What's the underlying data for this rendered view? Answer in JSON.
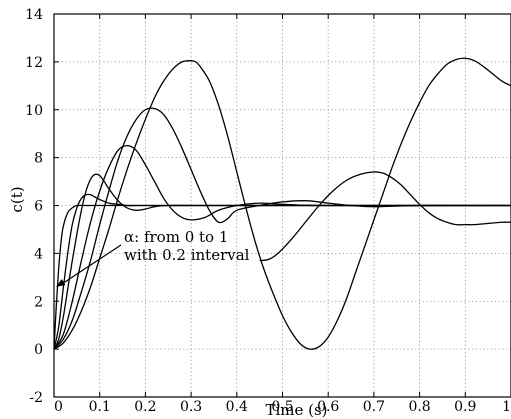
{
  "chart_data": {
    "type": "line",
    "xlabel": "Time (s)",
    "ylabel": "c(t)",
    "xlim": [
      0,
      1
    ],
    "ylim": [
      -2,
      14
    ],
    "x_ticks": [
      0,
      0.1,
      0.2,
      0.3,
      0.4,
      0.5,
      0.6,
      0.7,
      0.8,
      0.9,
      1
    ],
    "x_tick_labels": [
      "0",
      "0.1",
      "0.2",
      "0.3",
      "0.4",
      "0.5",
      "0.6",
      "0.7",
      "0.8",
      "0.9",
      "1"
    ],
    "y_ticks": [
      -2,
      0,
      2,
      4,
      6,
      8,
      10,
      12,
      14
    ],
    "y_tick_labels": [
      "-2",
      "0",
      "2",
      "4",
      "6",
      "8",
      "10",
      "12",
      "14"
    ],
    "grid": true,
    "annotation": {
      "line1": "α: from 0 to 1",
      "line2": "with 0.2 interval",
      "arrow_target": [
        0.0,
        2.6
      ]
    },
    "series": [
      {
        "x": [
          0,
          0.005,
          0.01,
          0.015,
          0.02,
          0.03,
          0.04,
          0.05,
          0.07,
          0.1,
          0.2,
          0.4,
          0.6,
          0.8,
          1.0
        ],
        "values": [
          0,
          1.8,
          3.3,
          4.4,
          5.1,
          5.7,
          5.9,
          6.0,
          6.0,
          6.0,
          6.0,
          6.0,
          6.0,
          6.0,
          6.0
        ]
      },
      {
        "x": [
          0,
          0.01,
          0.02,
          0.03,
          0.04,
          0.05,
          0.06,
          0.07,
          0.08,
          0.09,
          0.1,
          0.12,
          0.14,
          0.16,
          0.18,
          0.2,
          0.25,
          0.3,
          0.4,
          0.5,
          1.0
        ],
        "values": [
          0,
          0.9,
          2.5,
          4.0,
          5.2,
          5.9,
          6.3,
          6.45,
          6.45,
          6.35,
          6.25,
          6.1,
          6.05,
          6.0,
          6.0,
          6.0,
          6.0,
          6.0,
          6.0,
          6.0,
          6.0
        ]
      },
      {
        "x": [
          0,
          0.01,
          0.02,
          0.03,
          0.04,
          0.05,
          0.06,
          0.07,
          0.08,
          0.09,
          0.1,
          0.11,
          0.12,
          0.14,
          0.16,
          0.18,
          0.2,
          0.22,
          0.25,
          0.3,
          0.4,
          0.5,
          1.0
        ],
        "values": [
          0,
          0.4,
          1.3,
          2.5,
          3.7,
          4.8,
          5.8,
          6.6,
          7.1,
          7.3,
          7.25,
          7.0,
          6.7,
          6.2,
          5.9,
          5.8,
          5.85,
          5.95,
          6.0,
          6.0,
          6.0,
          6.0,
          6.0
        ]
      },
      {
        "x": [
          0,
          0.02,
          0.04,
          0.06,
          0.08,
          0.1,
          0.12,
          0.14,
          0.16,
          0.18,
          0.2,
          0.22,
          0.24,
          0.26,
          0.28,
          0.3,
          0.33,
          0.36,
          0.4,
          0.45,
          0.5,
          0.6,
          1.0
        ],
        "values": [
          0,
          0.6,
          2.0,
          3.7,
          5.3,
          6.6,
          7.6,
          8.3,
          8.5,
          8.3,
          7.7,
          7.0,
          6.3,
          5.8,
          5.5,
          5.4,
          5.5,
          5.8,
          6.0,
          6.1,
          6.05,
          6.0,
          6.0
        ]
      },
      {
        "x": [
          0,
          0.02,
          0.04,
          0.06,
          0.08,
          0.1,
          0.12,
          0.14,
          0.16,
          0.18,
          0.2,
          0.22,
          0.24,
          0.26,
          0.28,
          0.3,
          0.32,
          0.34,
          0.36,
          0.38,
          0.4,
          0.45,
          0.5,
          0.55,
          0.6,
          0.65,
          0.7,
          0.8,
          0.9,
          1.0
        ],
        "values": [
          0,
          0.4,
          1.2,
          2.4,
          3.7,
          5.2,
          6.6,
          7.9,
          8.9,
          9.6,
          10.0,
          10.05,
          9.8,
          9.2,
          8.4,
          7.5,
          6.6,
          5.8,
          5.3,
          5.45,
          5.8,
          6.0,
          6.15,
          6.2,
          6.1,
          6.0,
          5.95,
          6.0,
          6.0,
          6.0
        ]
      },
      {
        "x": [
          0,
          0.02,
          0.04,
          0.06,
          0.08,
          0.1,
          0.12,
          0.14,
          0.16,
          0.18,
          0.2,
          0.22,
          0.24,
          0.26,
          0.28,
          0.3,
          0.31,
          0.32,
          0.34,
          0.36,
          0.38,
          0.4,
          0.42,
          0.44,
          0.46,
          0.48,
          0.5,
          0.52,
          0.54,
          0.56,
          0.58,
          0.6,
          0.62,
          0.64,
          0.66,
          0.68,
          0.7,
          0.72,
          0.74,
          0.76,
          0.78,
          0.8,
          0.82,
          0.84,
          0.86,
          0.88,
          0.9,
          0.92,
          0.94,
          0.96,
          0.98,
          1.0
        ],
        "values": [
          0,
          0.25,
          0.8,
          1.6,
          2.6,
          3.8,
          5.0,
          6.3,
          7.5,
          8.6,
          9.6,
          10.5,
          11.2,
          11.7,
          12.0,
          12.05,
          12.0,
          11.8,
          11.2,
          10.2,
          8.9,
          7.4,
          5.9,
          4.5,
          3.3,
          2.3,
          1.4,
          0.7,
          0.2,
          0.0,
          0.1,
          0.5,
          1.2,
          2.1,
          3.2,
          4.3,
          5.4,
          6.5,
          7.6,
          8.6,
          9.5,
          10.3,
          11.0,
          11.5,
          11.9,
          12.1,
          12.15,
          12.05,
          11.8,
          11.5,
          11.2,
          11.0
        ]
      },
      {
        "x": [
          0.45,
          0.47,
          0.49,
          0.52,
          0.55,
          0.58,
          0.61,
          0.64,
          0.67,
          0.7,
          0.72,
          0.74,
          0.76,
          0.78,
          0.8,
          0.82,
          0.84,
          0.86,
          0.88,
          0.9,
          0.92,
          0.95,
          0.98,
          1.0
        ],
        "values": [
          3.7,
          3.75,
          4.0,
          4.6,
          5.3,
          6.0,
          6.6,
          7.05,
          7.3,
          7.4,
          7.35,
          7.15,
          6.85,
          6.45,
          6.05,
          5.7,
          5.45,
          5.3,
          5.2,
          5.2,
          5.2,
          5.25,
          5.3,
          5.3
        ]
      }
    ]
  }
}
